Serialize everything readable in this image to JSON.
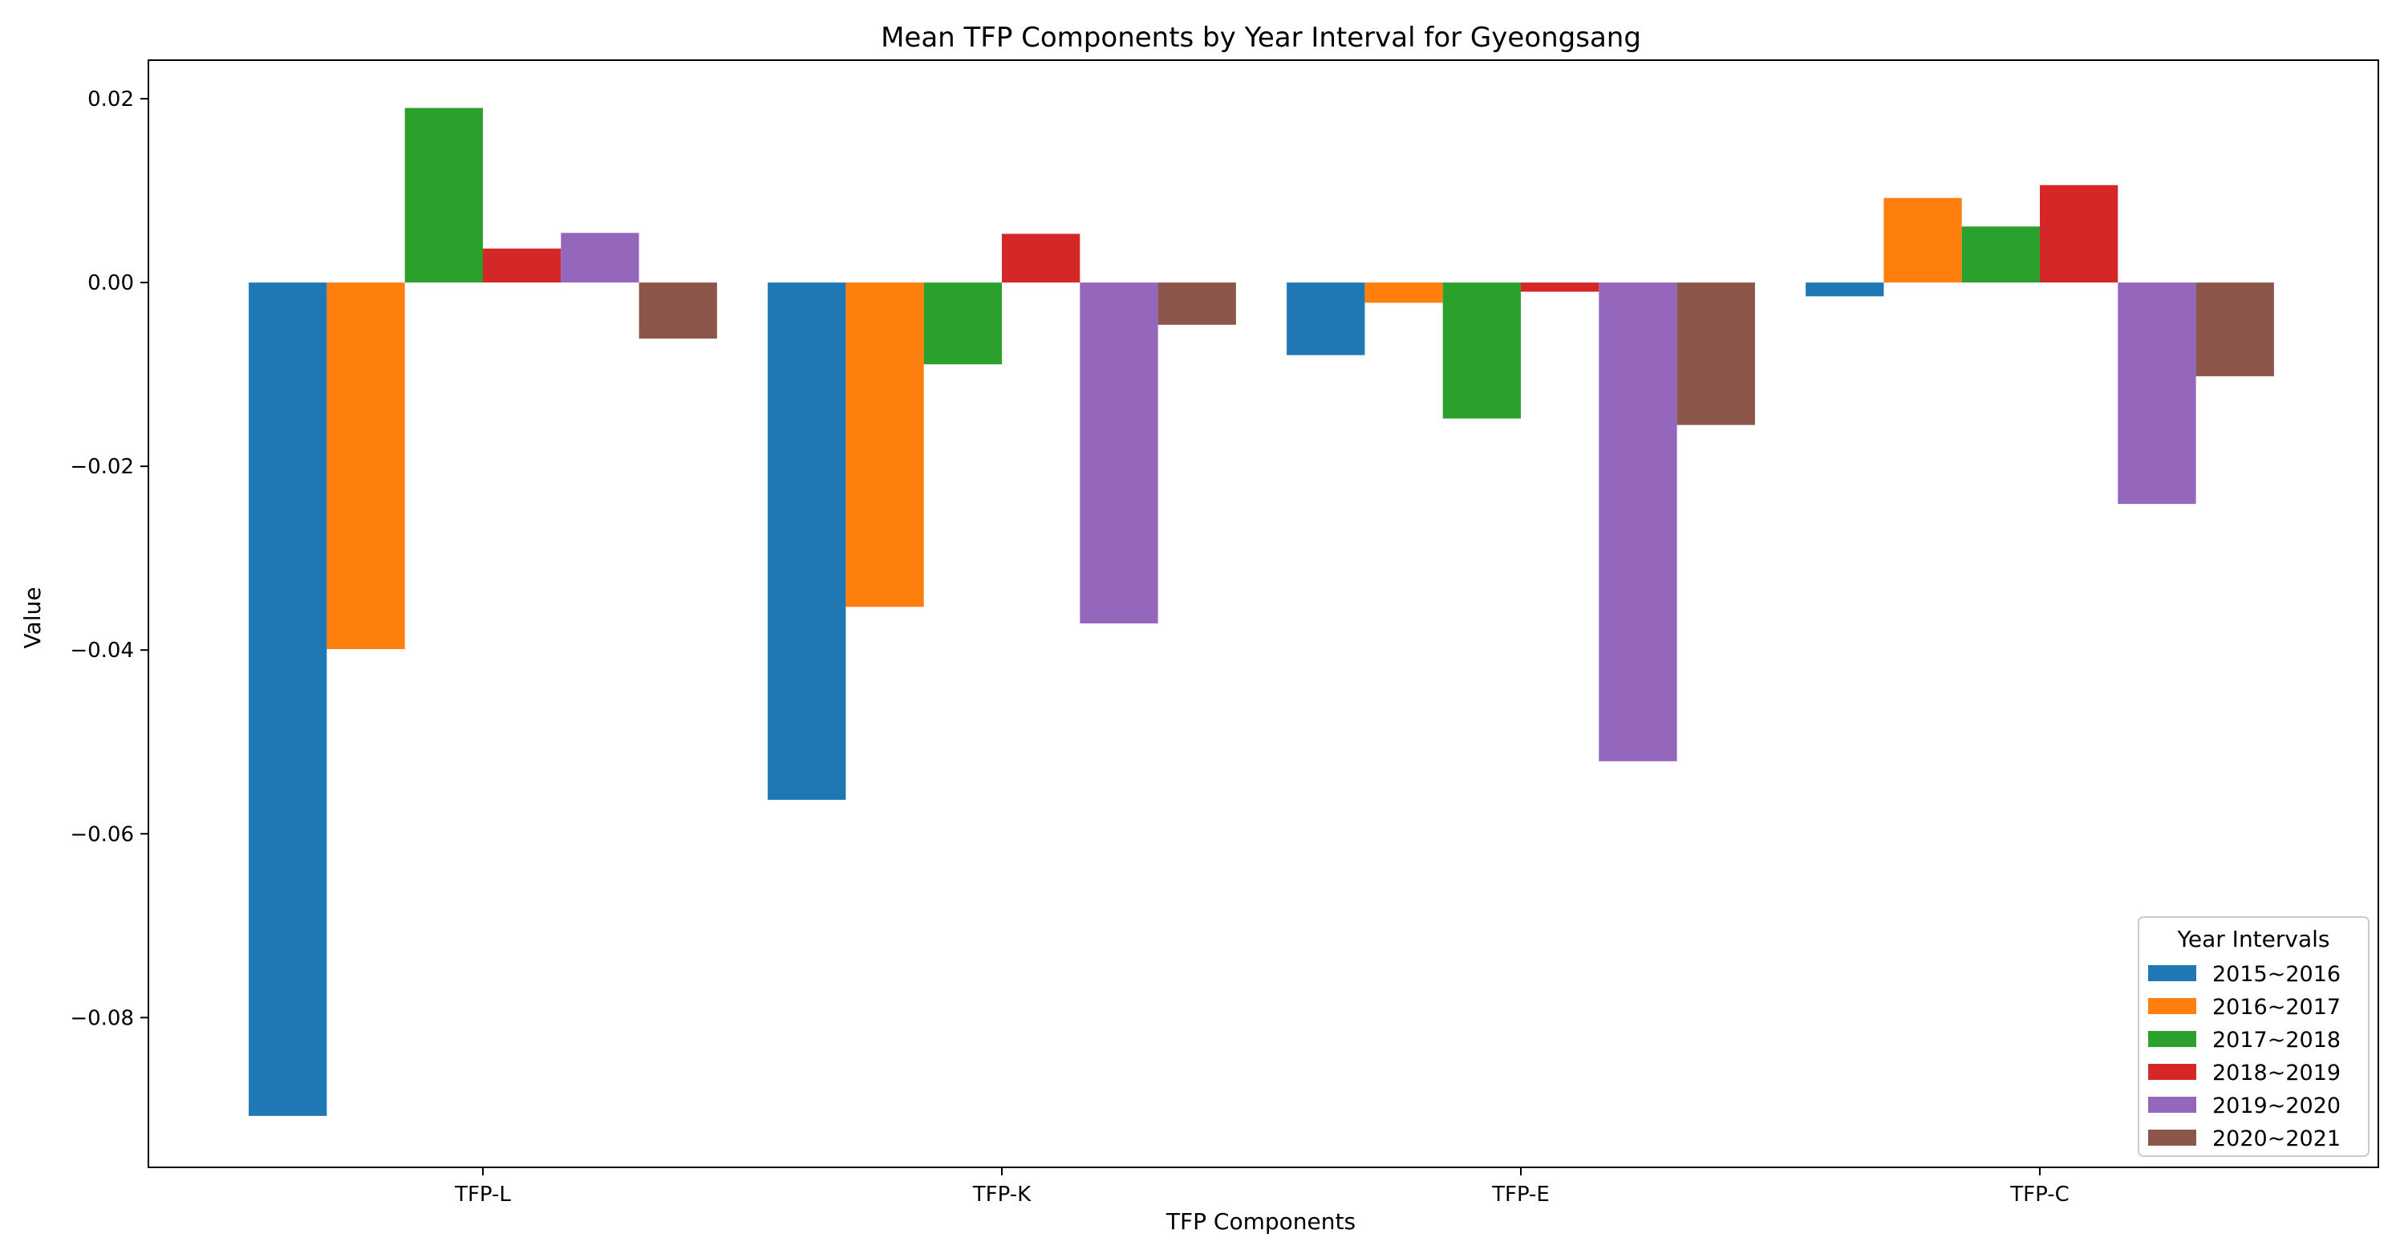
{
  "chart_data": {
    "type": "bar",
    "title": "Mean TFP Components by Year Interval for Gyeongsang",
    "xlabel": "TFP Components",
    "ylabel": "Value",
    "categories": [
      "TFP-L",
      "TFP-K",
      "TFP-E",
      "TFP-C"
    ],
    "ylim": [
      -0.0963,
      0.0242
    ],
    "yticks": [
      -0.08,
      -0.06,
      -0.04,
      -0.02,
      0.0,
      0.02
    ],
    "ytick_labels": [
      "−0.08",
      "−0.06",
      "−0.04",
      "−0.02",
      "0.00",
      "0.02"
    ],
    "grid": false,
    "legend": {
      "title": "Year Intervals",
      "placement": "lower-right"
    },
    "series": [
      {
        "name": "2015~2016",
        "color": "#1f77b4",
        "values": [
          -0.0907,
          -0.0563,
          -0.0079,
          -0.0015
        ]
      },
      {
        "name": "2016~2017",
        "color": "#ff7f0e",
        "values": [
          -0.0399,
          -0.0353,
          -0.0022,
          0.0092
        ]
      },
      {
        "name": "2017~2018",
        "color": "#2ca02c",
        "values": [
          0.019,
          -0.0089,
          -0.0148,
          0.0061
        ]
      },
      {
        "name": "2018~2019",
        "color": "#d62728",
        "values": [
          0.0037,
          0.0053,
          -0.001,
          0.0106
        ]
      },
      {
        "name": "2019~2020",
        "color": "#9467bd",
        "values": [
          0.0054,
          -0.0371,
          -0.0521,
          -0.0241
        ]
      },
      {
        "name": "2020~2021",
        "color": "#8c564b",
        "values": [
          -0.0061,
          -0.0046,
          -0.0155,
          -0.0102
        ]
      }
    ]
  }
}
